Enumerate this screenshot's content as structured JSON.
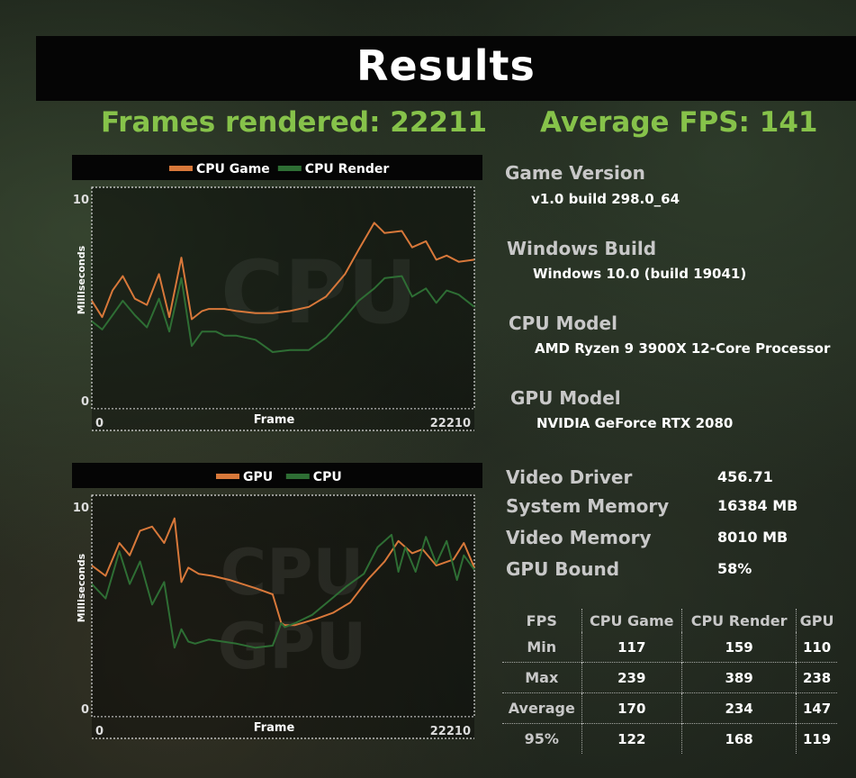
{
  "header": {
    "title": "Results"
  },
  "stats": {
    "frames_rendered": "Frames rendered: 22211",
    "average_fps": "Average FPS: 141"
  },
  "system": {
    "game_version": {
      "label": "Game Version",
      "value": "v1.0 build 298.0_64"
    },
    "windows_build": {
      "label": "Windows Build",
      "value": "Windows 10.0 (build 19041)"
    },
    "cpu_model": {
      "label": "CPU Model",
      "value": "AMD Ryzen 9 3900X 12-Core Processor"
    },
    "gpu_model": {
      "label": "GPU Model",
      "value": "NVIDIA GeForce RTX 2080"
    }
  },
  "specs": [
    {
      "label": "Video Driver",
      "value": "456.71"
    },
    {
      "label": "System Memory",
      "value": "16384 MB"
    },
    {
      "label": "Video Memory",
      "value": "8010 MB"
    },
    {
      "label": "GPU Bound",
      "value": "58%"
    }
  ],
  "fps_table": {
    "headers": [
      "FPS",
      "CPU Game",
      "CPU Render",
      "GPU"
    ],
    "rows": [
      {
        "label": "Min",
        "values": [
          "117",
          "159",
          "110"
        ]
      },
      {
        "label": "Max",
        "values": [
          "239",
          "389",
          "238"
        ]
      },
      {
        "label": "Average",
        "values": [
          "170",
          "234",
          "147"
        ]
      },
      {
        "label": "95%",
        "values": [
          "122",
          "168",
          "119"
        ]
      }
    ]
  },
  "chart_data": [
    {
      "type": "line",
      "watermark": "CPU",
      "xlabel": "Frame",
      "ylabel": "Milliseconds",
      "xlim": [
        0,
        22210
      ],
      "ylim": [
        0,
        10
      ],
      "x_tick_labels": [
        "0",
        "22210"
      ],
      "y_tick_labels": [
        "0",
        "10"
      ],
      "legend_position": "top",
      "series": [
        {
          "name": "CPU Game",
          "color": "#d8783a",
          "x": [
            0,
            600,
            1200,
            1800,
            2500,
            3200,
            3900,
            4500,
            5200,
            5800,
            6400,
            6800,
            7200,
            7700,
            8400,
            9500,
            10500,
            11500,
            12600,
            13600,
            14700,
            15500,
            16400,
            17000,
            18000,
            18600,
            19400,
            20000,
            20600,
            21300,
            22210
          ],
          "y": [
            5.0,
            4.2,
            5.5,
            6.2,
            5.1,
            4.8,
            6.3,
            4.2,
            7.1,
            4.1,
            4.5,
            4.6,
            4.6,
            4.6,
            4.5,
            4.4,
            4.4,
            4.5,
            4.7,
            5.2,
            6.3,
            7.5,
            8.8,
            8.3,
            8.4,
            7.6,
            7.9,
            7.0,
            7.2,
            6.9,
            7.0
          ]
        },
        {
          "name": "CPU Render",
          "color": "#2e6e34",
          "x": [
            0,
            600,
            1200,
            1800,
            2500,
            3200,
            3900,
            4500,
            5200,
            5800,
            6400,
            7200,
            7700,
            8400,
            9500,
            10500,
            11500,
            12600,
            13600,
            14700,
            15500,
            16400,
            17000,
            18000,
            18600,
            19400,
            20000,
            20600,
            21300,
            22210
          ],
          "y": [
            4.0,
            3.6,
            4.3,
            5.0,
            4.3,
            3.7,
            5.1,
            3.5,
            6.1,
            2.8,
            3.5,
            3.5,
            3.3,
            3.3,
            3.1,
            2.5,
            2.6,
            2.6,
            3.2,
            4.2,
            5.0,
            5.6,
            6.1,
            6.2,
            5.2,
            5.6,
            4.9,
            5.5,
            5.3,
            4.7
          ]
        }
      ]
    },
    {
      "type": "line",
      "watermark": "CPU GPU",
      "xlabel": "Frame",
      "ylabel": "Milliseconds",
      "xlim": [
        0,
        22210
      ],
      "ylim": [
        0,
        10
      ],
      "x_tick_labels": [
        "0",
        "22210"
      ],
      "y_tick_labels": [
        "0",
        "10"
      ],
      "legend_position": "top",
      "series": [
        {
          "name": "GPU",
          "color": "#d8783a",
          "x": [
            0,
            800,
            1600,
            2200,
            2800,
            3500,
            4200,
            4800,
            5200,
            5600,
            6200,
            7000,
            8000,
            9500,
            10500,
            11000,
            11200,
            11800,
            13000,
            14000,
            15000,
            16000,
            17000,
            17800,
            18600,
            19200,
            20000,
            21000,
            21600,
            22210
          ],
          "y": [
            7.1,
            6.6,
            8.2,
            7.6,
            8.8,
            9.0,
            8.2,
            9.4,
            6.3,
            7.0,
            6.7,
            6.6,
            6.4,
            6.0,
            5.7,
            4.3,
            4.2,
            4.2,
            4.5,
            4.8,
            5.3,
            6.4,
            7.3,
            8.3,
            7.7,
            7.9,
            7.1,
            7.4,
            8.2,
            7.0
          ]
        },
        {
          "name": "CPU",
          "color": "#2e6e34",
          "x": [
            0,
            800,
            1600,
            2200,
            2800,
            3500,
            4200,
            4800,
            5200,
            5600,
            6000,
            6800,
            7600,
            8400,
            9500,
            10500,
            11000,
            11200,
            11800,
            12800,
            13800,
            14800,
            15800,
            16600,
            17400,
            17800,
            18200,
            18800,
            19400,
            20000,
            20600,
            21200,
            21600,
            22210
          ],
          "y": [
            6.2,
            5.5,
            7.8,
            6.2,
            7.3,
            5.2,
            6.3,
            3.1,
            4.0,
            3.4,
            3.3,
            3.5,
            3.4,
            3.3,
            3.1,
            3.2,
            4.3,
            4.1,
            4.3,
            4.7,
            5.4,
            6.1,
            6.7,
            8.0,
            8.6,
            6.8,
            8.0,
            6.8,
            8.5,
            7.2,
            8.3,
            6.4,
            7.6,
            6.9
          ]
        }
      ]
    }
  ]
}
